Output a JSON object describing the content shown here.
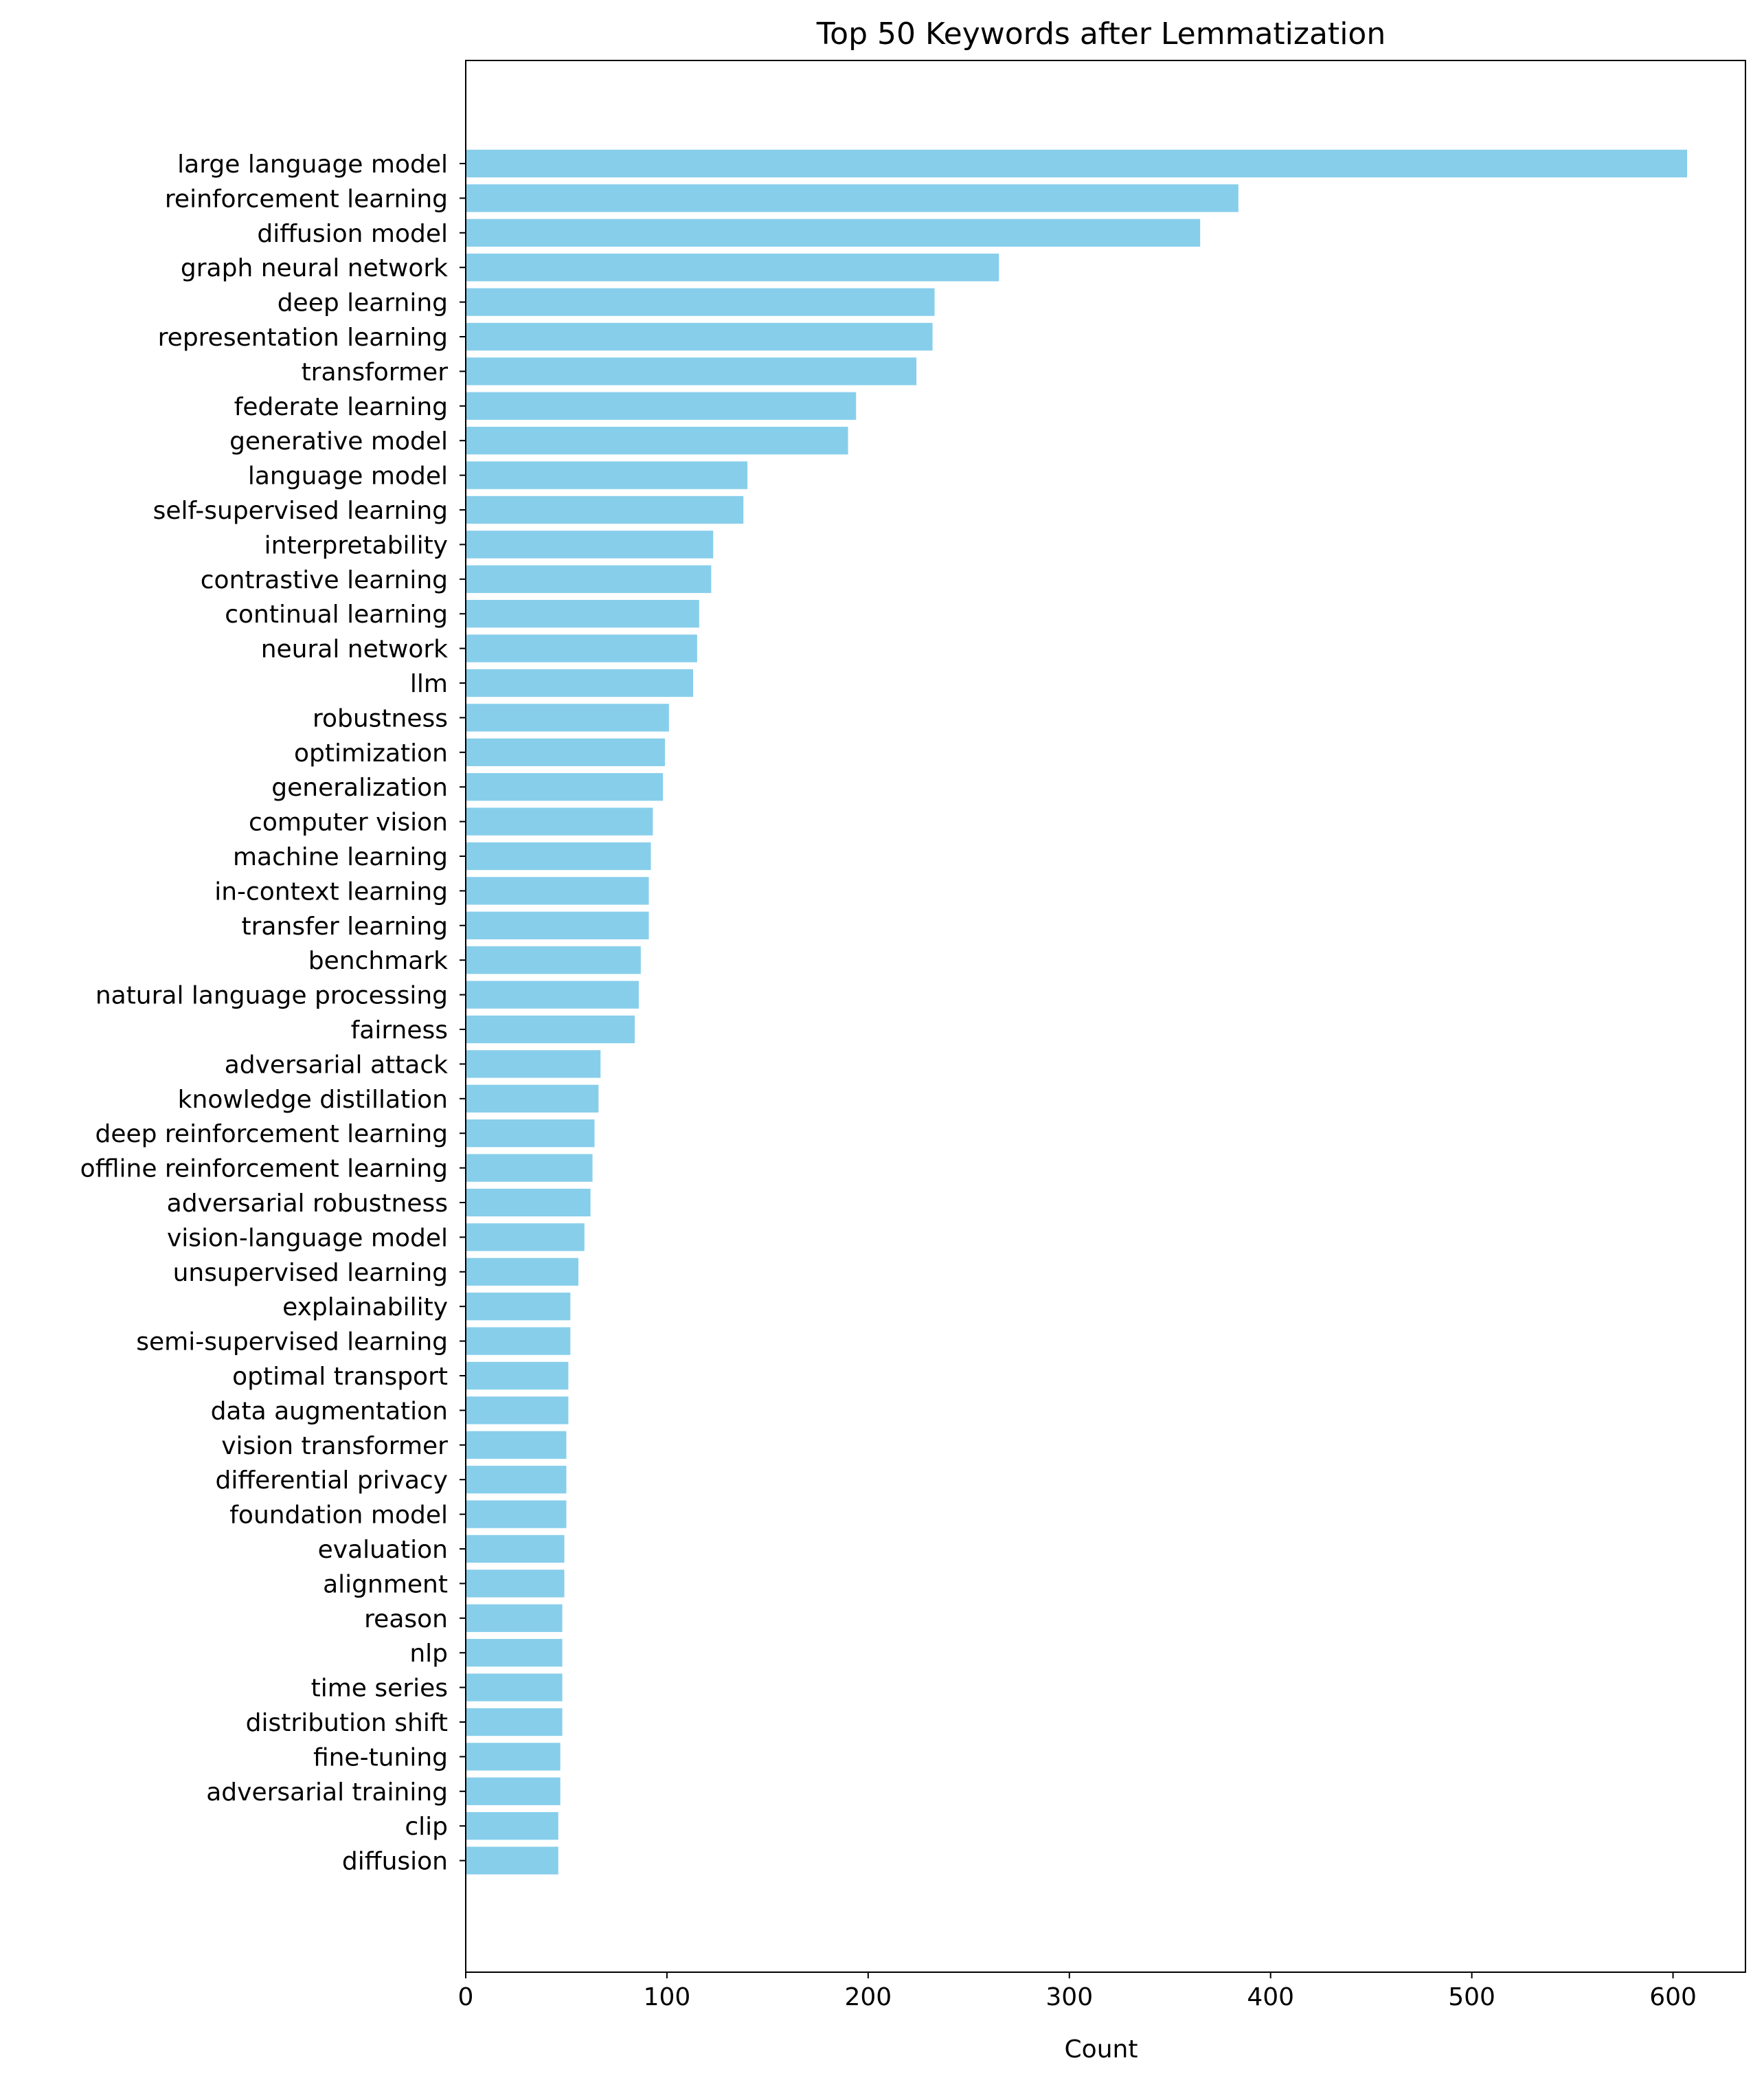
{
  "chart_data": {
    "type": "bar",
    "orientation": "horizontal",
    "title": "Top 50 Keywords after Lemmatization",
    "xlabel": "Count",
    "ylabel": "",
    "xlim": [
      0,
      636
    ],
    "xticks": [
      0,
      100,
      200,
      300,
      400,
      500,
      600
    ],
    "grid": false,
    "legend": "none",
    "bar_color": "#87ceeb",
    "categories": [
      "large language model",
      "reinforcement learning",
      "diffusion model",
      "graph neural network",
      "deep learning",
      "representation learning",
      "transformer",
      "federate learning",
      "generative model",
      "language model",
      "self-supervised learning",
      "interpretability",
      "contrastive learning",
      "continual learning",
      "neural network",
      "llm",
      "robustness",
      "optimization",
      "generalization",
      "computer vision",
      "machine learning",
      "in-context learning",
      "transfer learning",
      "benchmark",
      "natural language processing",
      "fairness",
      "adversarial attack",
      "knowledge distillation",
      "deep reinforcement learning",
      "offline reinforcement learning",
      "adversarial robustness",
      "vision-language model",
      "unsupervised learning",
      "explainability",
      "semi-supervised learning",
      "optimal transport",
      "data augmentation",
      "vision transformer",
      "differential privacy",
      "foundation model",
      "evaluation",
      "alignment",
      "reason",
      "nlp",
      "time series",
      "distribution shift",
      "fine-tuning",
      "adversarial training",
      "clip",
      "diffusion"
    ],
    "values": [
      607,
      384,
      365,
      265,
      233,
      232,
      224,
      194,
      190,
      140,
      138,
      123,
      122,
      116,
      115,
      113,
      101,
      99,
      98,
      93,
      92,
      91,
      91,
      87,
      86,
      84,
      67,
      66,
      64,
      63,
      62,
      59,
      56,
      52,
      52,
      51,
      51,
      50,
      50,
      50,
      49,
      49,
      48,
      48,
      48,
      48,
      47,
      47,
      46,
      46
    ]
  }
}
